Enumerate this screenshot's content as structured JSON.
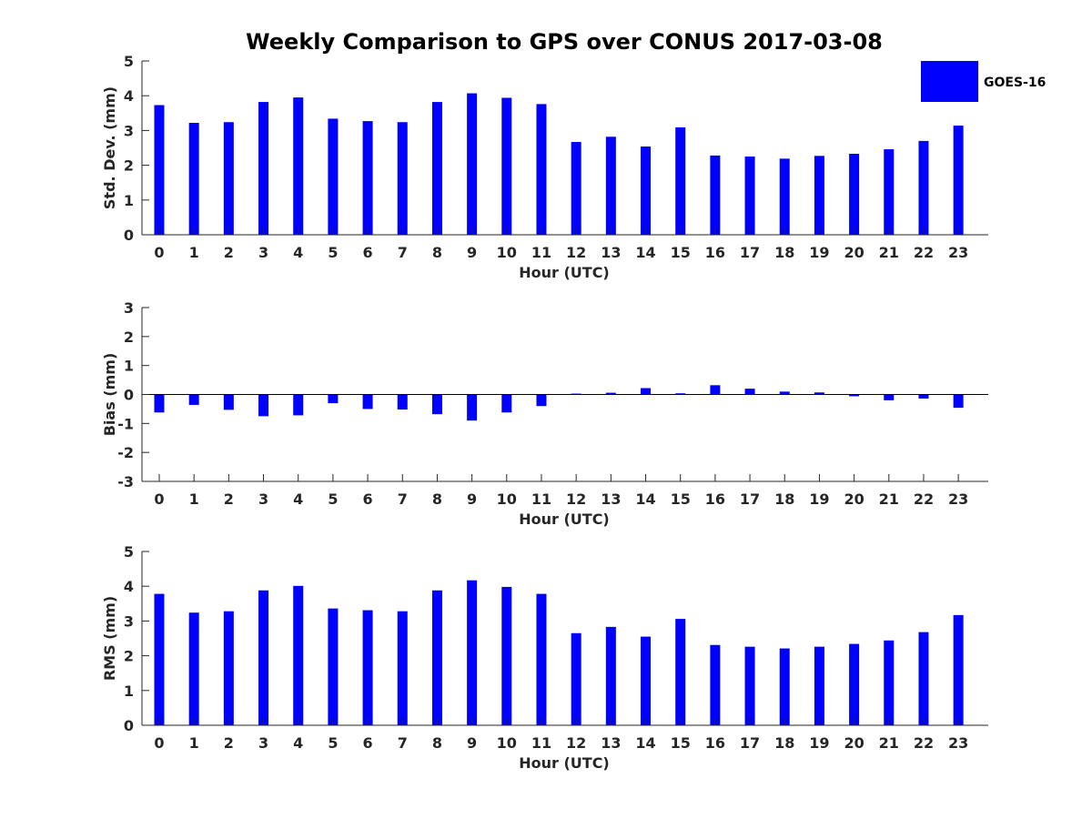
{
  "figure_title": "Weekly Comparison to GPS over CONUS 2017-03-08",
  "legend": {
    "label": "GOES-16",
    "color": "#0000ff"
  },
  "chart_data": [
    {
      "type": "bar",
      "id": "std",
      "title": "Weekly Comparison to GPS over CONUS 2017-03-08",
      "xlabel": "Hour (UTC)",
      "ylabel": "Std. Dev. (mm)",
      "ylim": [
        0,
        5
      ],
      "yticks": [
        0,
        1,
        2,
        3,
        4,
        5
      ],
      "categories": [
        "0",
        "1",
        "2",
        "3",
        "4",
        "5",
        "6",
        "7",
        "8",
        "9",
        "10",
        "11",
        "12",
        "13",
        "14",
        "15",
        "16",
        "17",
        "18",
        "19",
        "20",
        "21",
        "22",
        "23"
      ],
      "series": [
        {
          "name": "GOES-16",
          "color": "#0000ff",
          "values": [
            3.73,
            3.22,
            3.24,
            3.82,
            3.95,
            3.34,
            3.27,
            3.24,
            3.82,
            4.07,
            3.94,
            3.76,
            2.67,
            2.82,
            2.54,
            3.09,
            2.28,
            2.25,
            2.19,
            2.27,
            2.33,
            2.46,
            2.7,
            3.14
          ]
        }
      ]
    },
    {
      "type": "bar",
      "id": "bias",
      "xlabel": "Hour (UTC)",
      "ylabel": "Bias (mm)",
      "ylim": [
        -3,
        3
      ],
      "yticks": [
        -3,
        -2,
        -1,
        0,
        1,
        2,
        3
      ],
      "categories": [
        "0",
        "1",
        "2",
        "3",
        "4",
        "5",
        "6",
        "7",
        "8",
        "9",
        "10",
        "11",
        "12",
        "13",
        "14",
        "15",
        "16",
        "17",
        "18",
        "19",
        "20",
        "21",
        "22",
        "23"
      ],
      "series": [
        {
          "name": "GOES-16",
          "color": "#0000ff",
          "values": [
            -0.62,
            -0.36,
            -0.53,
            -0.75,
            -0.72,
            -0.3,
            -0.5,
            -0.52,
            -0.68,
            -0.9,
            -0.62,
            -0.4,
            0.03,
            0.06,
            0.22,
            0.04,
            0.32,
            0.2,
            0.1,
            0.07,
            -0.06,
            -0.2,
            -0.14,
            -0.46
          ]
        }
      ]
    },
    {
      "type": "bar",
      "id": "rms",
      "xlabel": "Hour (UTC)",
      "ylabel": "RMS (mm)",
      "ylim": [
        0,
        5
      ],
      "yticks": [
        0,
        1,
        2,
        3,
        4,
        5
      ],
      "categories": [
        "0",
        "1",
        "2",
        "3",
        "4",
        "5",
        "6",
        "7",
        "8",
        "9",
        "10",
        "11",
        "12",
        "13",
        "14",
        "15",
        "16",
        "17",
        "18",
        "19",
        "20",
        "21",
        "22",
        "23"
      ],
      "series": [
        {
          "name": "GOES-16",
          "color": "#0000ff",
          "values": [
            3.78,
            3.24,
            3.28,
            3.88,
            4.01,
            3.36,
            3.31,
            3.28,
            3.88,
            4.17,
            3.98,
            3.78,
            2.65,
            2.83,
            2.55,
            3.06,
            2.31,
            2.26,
            2.21,
            2.26,
            2.34,
            2.44,
            2.68,
            3.17
          ]
        }
      ]
    }
  ]
}
